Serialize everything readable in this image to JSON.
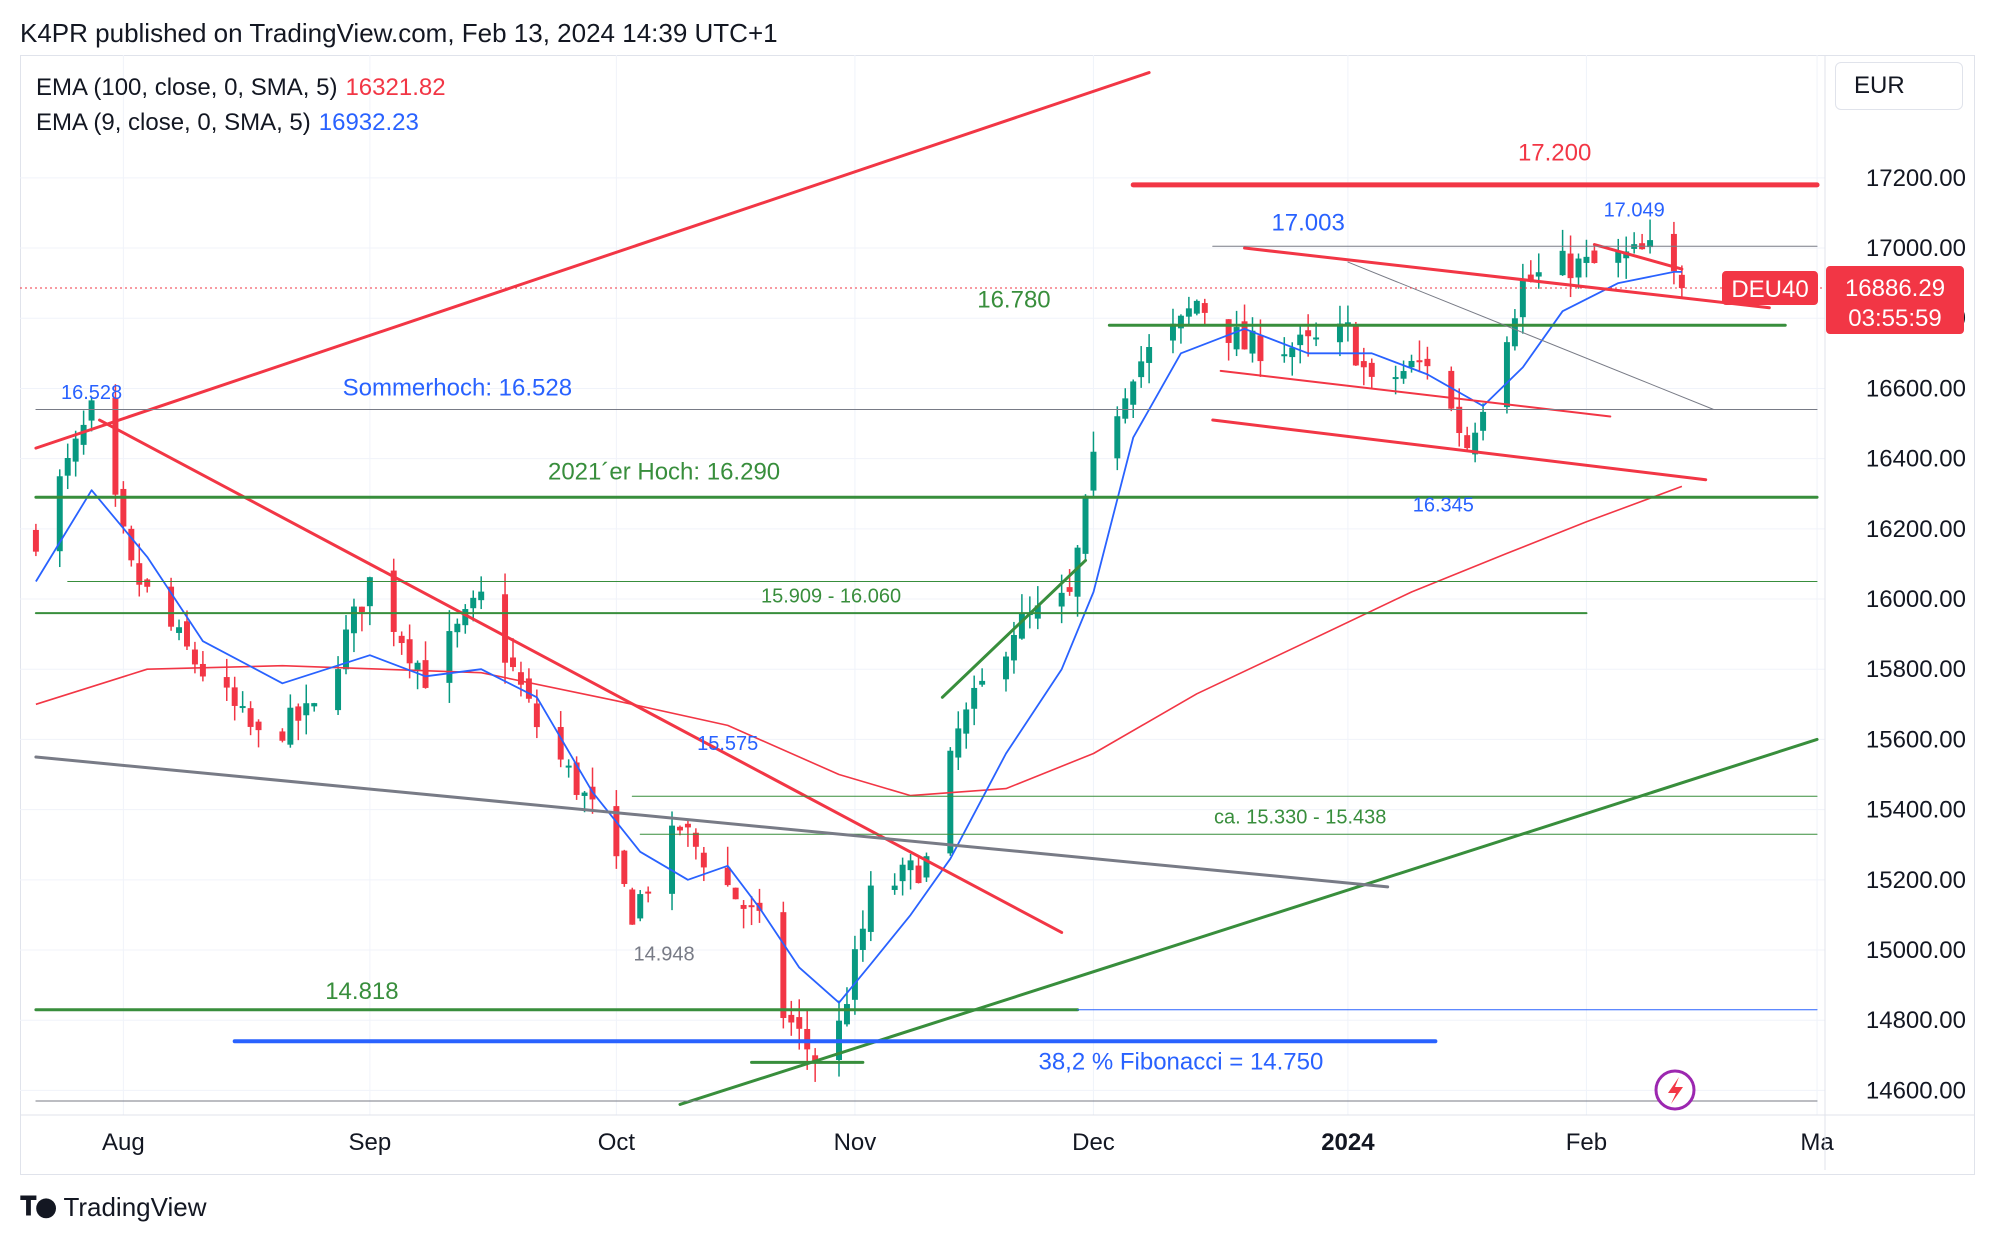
{
  "header": {
    "publisher": "K4PR published on TradingView.com, Feb 13, 2024 14:39 UTC+1"
  },
  "footer": {
    "brand": "TradingView"
  },
  "currency": "EUR",
  "legend": [
    {
      "label": "EMA (100, close, 0, SMA, 5)",
      "value": "16321.82",
      "color": "#f23645"
    },
    {
      "label": "EMA (9, close, 0, SMA, 5)",
      "value": "16932.23",
      "color": "#2962ff"
    }
  ],
  "price_tag": {
    "symbol": "DEU40",
    "price": "16886.29",
    "countdown": "03:55:59",
    "color": "#f23645"
  },
  "colors": {
    "up": "#089981",
    "down": "#f23645",
    "red_line": "#f23645",
    "green_line": "#388e3c",
    "blue_line": "#2962ff",
    "gray_line": "#787b86"
  },
  "chart_data": {
    "type": "candlestick",
    "symbol": "DEU40",
    "y_ticks": [
      "17200.00",
      "17000.00",
      "16800.00",
      "16600.00",
      "16400.00",
      "16200.00",
      "16000.00",
      "15800.00",
      "15600.00",
      "15400.00",
      "15200.00",
      "15000.00",
      "14800.00",
      "14600.00"
    ],
    "x_ticks": [
      {
        "label": "Aug",
        "date": "2023-08-01",
        "bold": false
      },
      {
        "label": "Sep",
        "date": "2023-09-01",
        "bold": false
      },
      {
        "label": "Oct",
        "date": "2023-10-02",
        "bold": false
      },
      {
        "label": "Nov",
        "date": "2023-11-01",
        "bold": false
      },
      {
        "label": "Dec",
        "date": "2023-12-01",
        "bold": false
      },
      {
        "label": "2024",
        "date": "2024-01-02",
        "bold": true
      },
      {
        "label": "Feb",
        "date": "2024-02-01",
        "bold": false
      },
      {
        "label": "Ma",
        "date": "2024-03-01",
        "bold": false
      }
    ],
    "ohlc_path": [
      [
        "2023-07-21",
        16180
      ],
      [
        "2023-07-28",
        16528
      ],
      [
        "2023-08-02",
        16080
      ],
      [
        "2023-08-09",
        15850
      ],
      [
        "2023-08-18",
        15600
      ],
      [
        "2023-08-25",
        15680
      ],
      [
        "2023-09-01",
        16050
      ],
      [
        "2023-09-08",
        15780
      ],
      [
        "2023-09-15",
        16000
      ],
      [
        "2023-09-22",
        15640
      ],
      [
        "2023-09-29",
        15400
      ],
      [
        "2023-10-04",
        15110
      ],
      [
        "2023-10-10",
        15350
      ],
      [
        "2023-10-16",
        15180
      ],
      [
        "2023-10-20",
        15070
      ],
      [
        "2023-10-23",
        14820
      ],
      [
        "2023-10-27",
        14690
      ],
      [
        "2023-10-30",
        14780
      ],
      [
        "2023-11-03",
        15150
      ],
      [
        "2023-11-10",
        15250
      ],
      [
        "2023-11-14",
        15620
      ],
      [
        "2023-11-21",
        15920
      ],
      [
        "2023-11-28",
        16000
      ],
      [
        "2023-12-01",
        16380
      ],
      [
        "2023-12-06",
        16660
      ],
      [
        "2023-12-12",
        16780
      ],
      [
        "2023-12-14",
        16850
      ],
      [
        "2023-12-20",
        16720
      ],
      [
        "2023-12-28",
        16720
      ],
      [
        "2024-01-02",
        16760
      ],
      [
        "2024-01-05",
        16600
      ],
      [
        "2024-01-10",
        16660
      ],
      [
        "2024-01-12",
        16680
      ],
      [
        "2024-01-17",
        16440
      ],
      [
        "2024-01-19",
        16570
      ],
      [
        "2024-01-24",
        16900
      ],
      [
        "2024-01-29",
        16950
      ],
      [
        "2024-02-02",
        16950
      ],
      [
        "2024-02-07",
        16980
      ],
      [
        "2024-02-09",
        16990
      ],
      [
        "2024-02-13",
        16886
      ]
    ],
    "ema9": [
      [
        "2023-07-21",
        16050
      ],
      [
        "2023-07-28",
        16310
      ],
      [
        "2023-08-04",
        16120
      ],
      [
        "2023-08-11",
        15880
      ],
      [
        "2023-08-21",
        15760
      ],
      [
        "2023-09-01",
        15840
      ],
      [
        "2023-09-08",
        15780
      ],
      [
        "2023-09-15",
        15800
      ],
      [
        "2023-09-22",
        15720
      ],
      [
        "2023-09-29",
        15450
      ],
      [
        "2023-10-05",
        15280
      ],
      [
        "2023-10-11",
        15200
      ],
      [
        "2023-10-16",
        15240
      ],
      [
        "2023-10-20",
        15120
      ],
      [
        "2023-10-25",
        14950
      ],
      [
        "2023-10-30",
        14850
      ],
      [
        "2023-11-03",
        14960
      ],
      [
        "2023-11-08",
        15100
      ],
      [
        "2023-11-13",
        15260
      ],
      [
        "2023-11-20",
        15560
      ],
      [
        "2023-11-27",
        15800
      ],
      [
        "2023-12-01",
        16020
      ],
      [
        "2023-12-06",
        16460
      ],
      [
        "2023-12-12",
        16700
      ],
      [
        "2023-12-20",
        16770
      ],
      [
        "2023-12-28",
        16700
      ],
      [
        "2024-01-05",
        16700
      ],
      [
        "2024-01-12",
        16640
      ],
      [
        "2024-01-19",
        16550
      ],
      [
        "2024-01-24",
        16660
      ],
      [
        "2024-01-29",
        16820
      ],
      [
        "2024-02-05",
        16900
      ],
      [
        "2024-02-12",
        16932
      ],
      [
        "2024-02-13",
        16932
      ]
    ],
    "ema100": [
      [
        "2023-07-21",
        15700
      ],
      [
        "2023-08-04",
        15800
      ],
      [
        "2023-08-21",
        15810
      ],
      [
        "2023-09-15",
        15790
      ],
      [
        "2023-10-02",
        15710
      ],
      [
        "2023-10-16",
        15640
      ],
      [
        "2023-10-30",
        15500
      ],
      [
        "2023-11-08",
        15440
      ],
      [
        "2023-11-20",
        15460
      ],
      [
        "2023-12-01",
        15560
      ],
      [
        "2023-12-14",
        15730
      ],
      [
        "2023-12-28",
        15880
      ],
      [
        "2024-01-10",
        16020
      ],
      [
        "2024-01-22",
        16130
      ],
      [
        "2024-02-01",
        16220
      ],
      [
        "2024-02-13",
        16321
      ]
    ],
    "lines": [
      {
        "color": "red",
        "width": 3,
        "from": [
          "2023-07-21",
          16430
        ],
        "to": [
          "2023-12-08",
          17500
        ]
      },
      {
        "color": "red",
        "width": 3,
        "from": [
          "2023-07-29",
          16510
        ],
        "to": [
          "2023-11-27",
          15050
        ]
      },
      {
        "color": "red",
        "width": 5,
        "from": [
          "2023-12-06",
          17180
        ],
        "to": [
          "2024-03-01",
          17180
        ]
      },
      {
        "color": "red",
        "width": 3,
        "from": [
          "2023-12-20",
          17000
        ],
        "to": [
          "2024-02-24",
          16830
        ]
      },
      {
        "color": "red",
        "width": 3,
        "from": [
          "2024-02-02",
          17010
        ],
        "to": [
          "2024-02-13",
          16940
        ]
      },
      {
        "color": "red",
        "width": 2,
        "from": [
          "2023-12-17",
          16650
        ],
        "to": [
          "2024-02-04",
          16520
        ]
      },
      {
        "color": "red",
        "width": 3,
        "from": [
          "2023-12-16",
          16510
        ],
        "to": [
          "2024-02-16",
          16340
        ]
      },
      {
        "color": "green",
        "width": 3,
        "from": [
          "2023-12-03",
          16780
        ],
        "to": [
          "2024-02-26",
          16780
        ]
      },
      {
        "color": "green",
        "width": 3,
        "from": [
          "2023-07-21",
          16290
        ],
        "to": [
          "2024-03-01",
          16290
        ]
      },
      {
        "color": "green",
        "width": 2,
        "from": [
          "2023-07-21",
          15960
        ],
        "to": [
          "2024-02-01",
          15960
        ]
      },
      {
        "color": "green",
        "width": 1,
        "from": [
          "2023-07-25",
          16050
        ],
        "to": [
          "2024-03-01",
          16050
        ]
      },
      {
        "color": "green",
        "width": 1,
        "from": [
          "2023-10-04",
          15438
        ],
        "to": [
          "2024-03-01",
          15438
        ]
      },
      {
        "color": "green",
        "width": 1,
        "from": [
          "2023-10-05",
          15330
        ],
        "to": [
          "2024-03-01",
          15330
        ]
      },
      {
        "color": "green",
        "width": 3,
        "from": [
          "2023-07-21",
          14830
        ],
        "to": [
          "2023-11-29",
          14830
        ]
      },
      {
        "color": "green",
        "width": 3,
        "from": [
          "2023-10-19",
          14680
        ],
        "to": [
          "2023-11-02",
          14680
        ]
      },
      {
        "color": "green",
        "width": 3,
        "from": [
          "2023-10-10",
          14560
        ],
        "to": [
          "2024-03-01",
          15600
        ]
      },
      {
        "color": "green",
        "width": 3,
        "from": [
          "2023-11-12",
          15720
        ],
        "to": [
          "2023-11-30",
          16110
        ]
      },
      {
        "color": "blue",
        "width": 4,
        "from": [
          "2023-08-15",
          14740
        ],
        "to": [
          "2024-01-13",
          14740
        ]
      },
      {
        "color": "blue",
        "width": 1,
        "from": [
          "2023-11-29",
          14830
        ],
        "to": [
          "2024-03-01",
          14830
        ]
      },
      {
        "color": "gray",
        "width": 3,
        "from": [
          "2023-07-21",
          15550
        ],
        "to": [
          "2024-01-07",
          15180
        ]
      },
      {
        "color": "gray",
        "width": 1,
        "from": [
          "2023-07-21",
          16540
        ],
        "to": [
          "2024-03-01",
          16540
        ]
      },
      {
        "color": "gray",
        "width": 1,
        "from": [
          "2023-12-16",
          17005
        ],
        "to": [
          "2024-03-01",
          17005
        ]
      },
      {
        "color": "gray",
        "width": 1,
        "from": [
          "2024-01-02",
          16960
        ],
        "to": [
          "2024-02-17",
          16540
        ]
      },
      {
        "color": "gray",
        "width": 1,
        "from": [
          "2023-07-21",
          14570
        ],
        "to": [
          "2024-03-01",
          14570
        ]
      }
    ],
    "annotations": [
      {
        "text": "17.200",
        "at": [
          "2024-01-28",
          17250
        ],
        "color": "red",
        "size": 24
      },
      {
        "text": "17.003",
        "at": [
          "2023-12-28",
          17050
        ],
        "color": "blue",
        "size": 24
      },
      {
        "text": "17.049",
        "at": [
          "2024-02-07",
          17090
        ],
        "color": "blue",
        "size": 20
      },
      {
        "text": "16.780",
        "at": [
          "2023-11-21",
          16830
        ],
        "color": "green",
        "size": 24
      },
      {
        "text": "16.528",
        "at": [
          "2023-07-28",
          16570
        ],
        "color": "blue",
        "size": 20
      },
      {
        "text": "Sommerhoch: 16.528",
        "at": [
          "2023-09-12",
          16580
        ],
        "color": "blue",
        "size": 24
      },
      {
        "text": "2021´er Hoch: 16.290",
        "at": [
          "2023-10-08",
          16340
        ],
        "color": "green",
        "size": 24
      },
      {
        "text": "16.345",
        "at": [
          "2024-01-14",
          16250
        ],
        "color": "blue",
        "size": 20
      },
      {
        "text": "15.909 - 16.060",
        "at": [
          "2023-10-29",
          15990
        ],
        "color": "green",
        "size": 20
      },
      {
        "text": "15.575",
        "at": [
          "2023-10-16",
          15570
        ],
        "color": "blue",
        "size": 20
      },
      {
        "text": "ca. 15.330 - 15.438",
        "at": [
          "2023-12-27",
          15360
        ],
        "color": "green",
        "size": 20
      },
      {
        "text": "14.948",
        "at": [
          "2023-10-08",
          14970
        ],
        "color": "gray",
        "size": 20
      },
      {
        "text": "14.818",
        "at": [
          "2023-08-31",
          14860
        ],
        "color": "green",
        "size": 24
      },
      {
        "text": "38,2 % Fibonacci = 14.750",
        "at": [
          "2023-12-12",
          14660
        ],
        "color": "blue",
        "size": 24
      }
    ]
  }
}
